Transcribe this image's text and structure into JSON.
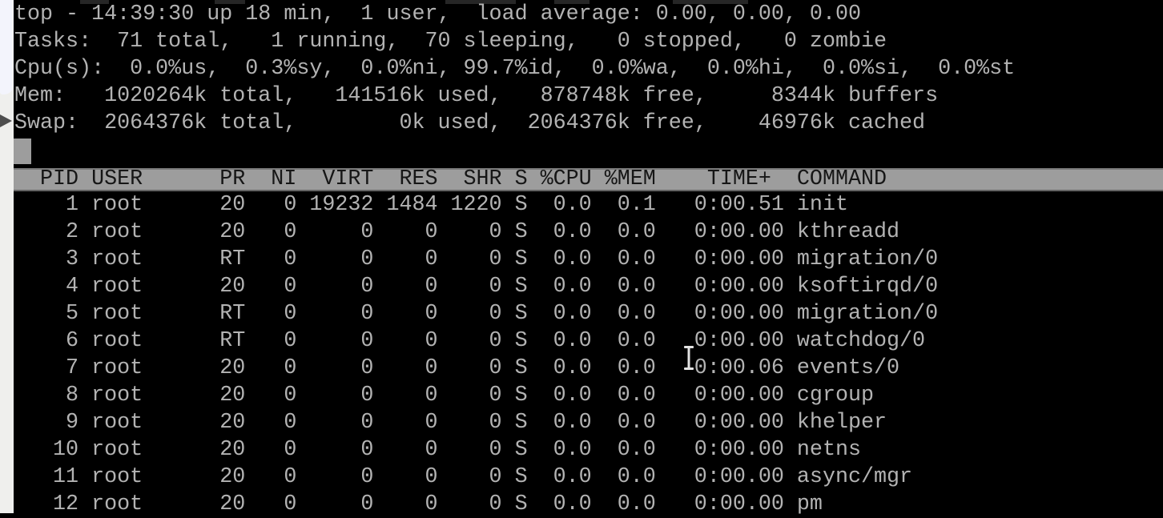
{
  "terminal": {
    "program": "top",
    "summary_lines": [
      "top - 14:39:30 up 18 min,  1 user,  load average: 0.00, 0.00, 0.00",
      "Tasks:  71 total,   1 running,  70 sleeping,   0 stopped,   0 zombie",
      "Cpu(s):  0.0%us,  0.3%sy,  0.0%ni, 99.7%id,  0.0%wa,  0.0%hi,  0.0%si,  0.0%st",
      "Mem:   1020264k total,   141516k used,   878748k free,     8344k buffers",
      "Swap:  2064376k total,        0k used,  2064376k free,    46976k cached"
    ],
    "stats": {
      "time": "14:39:30",
      "uptime": "18 min",
      "users": 1,
      "load_average": [
        "0.00",
        "0.00",
        "0.00"
      ],
      "tasks": {
        "total": 71,
        "running": 1,
        "sleeping": 70,
        "stopped": 0,
        "zombie": 0
      },
      "cpu": {
        "us": "0.0%",
        "sy": "0.3%",
        "ni": "0.0%",
        "id": "99.7%",
        "wa": "0.0%",
        "hi": "0.0%",
        "si": "0.0%",
        "st": "0.0%"
      },
      "mem_k": {
        "total": "1020264k",
        "used": "141516k",
        "free": "878748k",
        "buffers": "8344k"
      },
      "swap_k": {
        "total": "2064376k",
        "used": "0k",
        "free": "2064376k",
        "cached": "46976k"
      }
    },
    "process_table": {
      "header_line": "  PID USER      PR  NI  VIRT  RES  SHR S %CPU %MEM    TIME+  COMMAND",
      "columns": [
        "PID",
        "USER",
        "PR",
        "NI",
        "VIRT",
        "RES",
        "SHR",
        "S",
        "%CPU",
        "%MEM",
        "TIME+",
        "COMMAND"
      ],
      "rows": [
        {
          "pid": "1",
          "user": "root",
          "pr": "20",
          "ni": "0",
          "virt": "19232",
          "res": "1484",
          "shr": "1220",
          "s": "S",
          "cpu": "0.0",
          "mem": "0.1",
          "time": "0:00.51",
          "command": "init"
        },
        {
          "pid": "2",
          "user": "root",
          "pr": "20",
          "ni": "0",
          "virt": "0",
          "res": "0",
          "shr": "0",
          "s": "S",
          "cpu": "0.0",
          "mem": "0.0",
          "time": "0:00.00",
          "command": "kthreadd"
        },
        {
          "pid": "3",
          "user": "root",
          "pr": "RT",
          "ni": "0",
          "virt": "0",
          "res": "0",
          "shr": "0",
          "s": "S",
          "cpu": "0.0",
          "mem": "0.0",
          "time": "0:00.00",
          "command": "migration/0"
        },
        {
          "pid": "4",
          "user": "root",
          "pr": "20",
          "ni": "0",
          "virt": "0",
          "res": "0",
          "shr": "0",
          "s": "S",
          "cpu": "0.0",
          "mem": "0.0",
          "time": "0:00.00",
          "command": "ksoftirqd/0"
        },
        {
          "pid": "5",
          "user": "root",
          "pr": "RT",
          "ni": "0",
          "virt": "0",
          "res": "0",
          "shr": "0",
          "s": "S",
          "cpu": "0.0",
          "mem": "0.0",
          "time": "0:00.00",
          "command": "migration/0"
        },
        {
          "pid": "6",
          "user": "root",
          "pr": "RT",
          "ni": "0",
          "virt": "0",
          "res": "0",
          "shr": "0",
          "s": "S",
          "cpu": "0.0",
          "mem": "0.0",
          "time": "0:00.00",
          "command": "watchdog/0"
        },
        {
          "pid": "7",
          "user": "root",
          "pr": "20",
          "ni": "0",
          "virt": "0",
          "res": "0",
          "shr": "0",
          "s": "S",
          "cpu": "0.0",
          "mem": "0.0",
          "time": "0:00.06",
          "command": "events/0"
        },
        {
          "pid": "8",
          "user": "root",
          "pr": "20",
          "ni": "0",
          "virt": "0",
          "res": "0",
          "shr": "0",
          "s": "S",
          "cpu": "0.0",
          "mem": "0.0",
          "time": "0:00.00",
          "command": "cgroup"
        },
        {
          "pid": "9",
          "user": "root",
          "pr": "20",
          "ni": "0",
          "virt": "0",
          "res": "0",
          "shr": "0",
          "s": "S",
          "cpu": "0.0",
          "mem": "0.0",
          "time": "0:00.00",
          "command": "khelper"
        },
        {
          "pid": "10",
          "user": "root",
          "pr": "20",
          "ni": "0",
          "virt": "0",
          "res": "0",
          "shr": "0",
          "s": "S",
          "cpu": "0.0",
          "mem": "0.0",
          "time": "0:00.00",
          "command": "netns"
        },
        {
          "pid": "11",
          "user": "root",
          "pr": "20",
          "ni": "0",
          "virt": "0",
          "res": "0",
          "shr": "0",
          "s": "S",
          "cpu": "0.0",
          "mem": "0.0",
          "time": "0:00.00",
          "command": "async/mgr"
        },
        {
          "pid": "12",
          "user": "root",
          "pr": "20",
          "ni": "0",
          "virt": "0",
          "res": "0",
          "shr": "0",
          "s": "S",
          "cpu": "0.0",
          "mem": "0.0",
          "time": "0:00.00",
          "command": "pm"
        }
      ]
    },
    "colors": {
      "background": "#000000",
      "text": "#b3b3b3",
      "header_bar_bg": "#9d9d9d",
      "header_bar_text": "#161616",
      "block_cursor": "#9d9d9d"
    }
  }
}
